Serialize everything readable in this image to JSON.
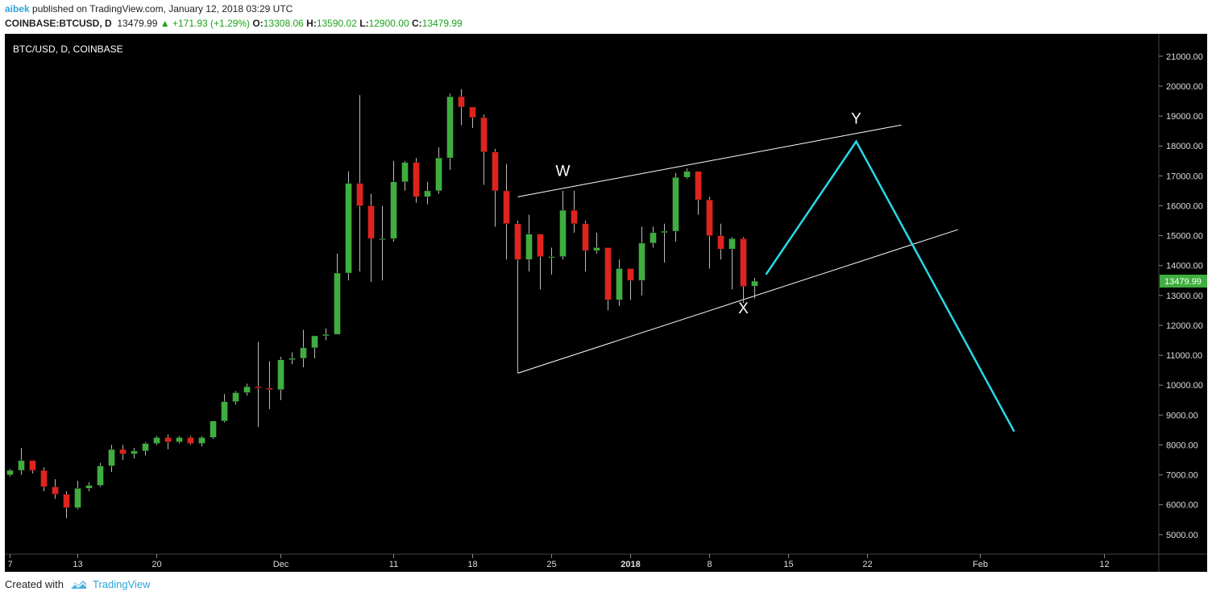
{
  "header": {
    "author": "aibek",
    "published_text": "published on TradingView.com, January 12, 2018 03:29 UTC",
    "symbol": "COINBASE:BTCUSD, D",
    "last": "13479.99",
    "change": "+171.93 (+1.29%)",
    "o_label": "O:",
    "o_value": "13308.06",
    "h_label": "H:",
    "h_value": "13590.02",
    "l_label": "L:",
    "l_value": "12900.00",
    "c_label": "C:",
    "c_value": "13479.99",
    "up_arrow": "▲"
  },
  "footer": {
    "created_with": "Created with",
    "brand": "TradingView",
    "brand_icon": "tradingview-logo-icon"
  },
  "colors": {
    "background": "#000000",
    "up": "#3fae3f",
    "down": "#e0231d",
    "projection": "#29d9e6",
    "channel": "#ffffff",
    "price_badge": "#3fae3f"
  },
  "chart_data": {
    "type": "candlestick",
    "title": "BTC/USD, D, COINBASE",
    "x_tick_labels": [
      "7",
      "13",
      "20",
      "Dec",
      "11",
      "18",
      "25",
      "2018",
      "8",
      "15",
      "22",
      "Feb",
      "12"
    ],
    "y_ticks": [
      5000,
      6000,
      7000,
      8000,
      9000,
      10000,
      11000,
      12000,
      13000,
      14000,
      15000,
      16000,
      17000,
      18000,
      19000,
      20000,
      21000
    ],
    "y_tick_labels": [
      "5000.00",
      "6000.00",
      "7000.00",
      "8000.00",
      "9000.00",
      "10000.00",
      "11000.00",
      "12000.00",
      "13000.00",
      "14000.00",
      "15000.00",
      "16000.00",
      "17000.00",
      "18000.00",
      "19000.00",
      "20000.00",
      "21000.00"
    ],
    "ylim": [
      4350,
      21750
    ],
    "grid": false,
    "current_price_label": "13479.99",
    "candles": [
      {
        "date": "2017-11-07",
        "o": 7000,
        "h": 7200,
        "l": 6950,
        "c": 7150
      },
      {
        "date": "2017-11-08",
        "o": 7150,
        "h": 7900,
        "l": 7000,
        "c": 7480
      },
      {
        "date": "2017-11-09",
        "o": 7480,
        "h": 7400,
        "l": 7050,
        "c": 7150
      },
      {
        "date": "2017-11-10",
        "o": 7150,
        "h": 7250,
        "l": 6450,
        "c": 6600
      },
      {
        "date": "2017-11-11",
        "o": 6600,
        "h": 6850,
        "l": 6200,
        "c": 6350
      },
      {
        "date": "2017-11-12",
        "o": 6350,
        "h": 6450,
        "l": 5550,
        "c": 5900
      },
      {
        "date": "2017-11-13",
        "o": 5900,
        "h": 6800,
        "l": 5850,
        "c": 6550
      },
      {
        "date": "2017-11-14",
        "o": 6550,
        "h": 6750,
        "l": 6450,
        "c": 6650
      },
      {
        "date": "2017-11-15",
        "o": 6650,
        "h": 7400,
        "l": 6600,
        "c": 7300
      },
      {
        "date": "2017-11-16",
        "o": 7300,
        "h": 8000,
        "l": 7100,
        "c": 7850
      },
      {
        "date": "2017-11-17",
        "o": 7850,
        "h": 8000,
        "l": 7500,
        "c": 7700
      },
      {
        "date": "2017-11-18",
        "o": 7700,
        "h": 7900,
        "l": 7550,
        "c": 7800
      },
      {
        "date": "2017-11-19",
        "o": 7800,
        "h": 8100,
        "l": 7650,
        "c": 8050
      },
      {
        "date": "2017-11-20",
        "o": 8050,
        "h": 8300,
        "l": 8000,
        "c": 8250
      },
      {
        "date": "2017-11-21",
        "o": 8250,
        "h": 8350,
        "l": 7850,
        "c": 8100
      },
      {
        "date": "2017-11-22",
        "o": 8100,
        "h": 8300,
        "l": 8050,
        "c": 8250
      },
      {
        "date": "2017-11-23",
        "o": 8250,
        "h": 8300,
        "l": 8000,
        "c": 8050
      },
      {
        "date": "2017-11-24",
        "o": 8050,
        "h": 8300,
        "l": 7950,
        "c": 8250
      },
      {
        "date": "2017-11-25",
        "o": 8250,
        "h": 8800,
        "l": 8200,
        "c": 8800
      },
      {
        "date": "2017-11-26",
        "o": 8800,
        "h": 9700,
        "l": 8750,
        "c": 9450
      },
      {
        "date": "2017-11-27",
        "o": 9450,
        "h": 9800,
        "l": 9350,
        "c": 9750
      },
      {
        "date": "2017-11-28",
        "o": 9750,
        "h": 10050,
        "l": 9650,
        "c": 9950
      },
      {
        "date": "2017-11-29",
        "o": 9950,
        "h": 11450,
        "l": 8600,
        "c": 9900
      },
      {
        "date": "2017-11-30",
        "o": 9900,
        "h": 10800,
        "l": 9200,
        "c": 9850
      },
      {
        "date": "2017-12-01",
        "o": 9850,
        "h": 10950,
        "l": 9500,
        "c": 10850
      },
      {
        "date": "2017-12-02",
        "o": 10850,
        "h": 11100,
        "l": 10700,
        "c": 10900
      },
      {
        "date": "2017-12-03",
        "o": 10900,
        "h": 11850,
        "l": 10600,
        "c": 11250
      },
      {
        "date": "2017-12-04",
        "o": 11250,
        "h": 11650,
        "l": 10900,
        "c": 11650
      },
      {
        "date": "2017-12-05",
        "o": 11650,
        "h": 11900,
        "l": 11500,
        "c": 11700
      },
      {
        "date": "2017-12-06",
        "o": 11700,
        "h": 14400,
        "l": 11700,
        "c": 13750
      },
      {
        "date": "2017-12-07",
        "o": 13750,
        "h": 17150,
        "l": 13500,
        "c": 16750
      },
      {
        "date": "2017-12-08",
        "o": 16750,
        "h": 19700,
        "l": 13800,
        "c": 16000
      },
      {
        "date": "2017-12-09",
        "o": 16000,
        "h": 16400,
        "l": 13450,
        "c": 14900
      },
      {
        "date": "2017-12-10",
        "o": 14900,
        "h": 16000,
        "l": 13500,
        "c": 14900
      },
      {
        "date": "2017-12-11",
        "o": 14900,
        "h": 17500,
        "l": 14800,
        "c": 16800
      },
      {
        "date": "2017-12-12",
        "o": 16800,
        "h": 17500,
        "l": 16500,
        "c": 17450
      },
      {
        "date": "2017-12-13",
        "o": 17450,
        "h": 17600,
        "l": 16100,
        "c": 16300
      },
      {
        "date": "2017-12-14",
        "o": 16300,
        "h": 16800,
        "l": 16050,
        "c": 16500
      },
      {
        "date": "2017-12-15",
        "o": 16500,
        "h": 17950,
        "l": 16400,
        "c": 17600
      },
      {
        "date": "2017-12-16",
        "o": 17600,
        "h": 19750,
        "l": 17200,
        "c": 19650
      },
      {
        "date": "2017-12-17",
        "o": 19650,
        "h": 19900,
        "l": 18700,
        "c": 19300
      },
      {
        "date": "2017-12-18",
        "o": 19300,
        "h": 19150,
        "l": 18600,
        "c": 18950
      },
      {
        "date": "2017-12-19",
        "o": 18950,
        "h": 19050,
        "l": 16700,
        "c": 17800
      },
      {
        "date": "2017-12-20",
        "o": 17800,
        "h": 17900,
        "l": 15300,
        "c": 16500
      },
      {
        "date": "2017-12-21",
        "o": 16500,
        "h": 17400,
        "l": 14200,
        "c": 15400
      },
      {
        "date": "2017-12-22",
        "o": 15400,
        "h": 15500,
        "l": 10400,
        "c": 14200
      },
      {
        "date": "2017-12-23",
        "o": 14200,
        "h": 15700,
        "l": 13800,
        "c": 15050
      },
      {
        "date": "2017-12-24",
        "o": 15050,
        "h": 15050,
        "l": 13200,
        "c": 14300
      },
      {
        "date": "2017-12-25",
        "o": 14300,
        "h": 14600,
        "l": 13700,
        "c": 14300
      },
      {
        "date": "2017-12-26",
        "o": 14300,
        "h": 16500,
        "l": 14200,
        "c": 15850
      },
      {
        "date": "2017-12-27",
        "o": 15850,
        "h": 16500,
        "l": 15100,
        "c": 15400
      },
      {
        "date": "2017-12-28",
        "o": 15400,
        "h": 15500,
        "l": 13800,
        "c": 14500
      },
      {
        "date": "2017-12-29",
        "o": 14500,
        "h": 15100,
        "l": 14400,
        "c": 14600
      },
      {
        "date": "2017-12-30",
        "o": 14600,
        "h": 14500,
        "l": 12500,
        "c": 12850
      },
      {
        "date": "2017-12-31",
        "o": 12850,
        "h": 14200,
        "l": 12650,
        "c": 13900
      },
      {
        "date": "2018-01-01",
        "o": 13900,
        "h": 13900,
        "l": 12850,
        "c": 13500
      },
      {
        "date": "2018-01-02",
        "o": 13500,
        "h": 15300,
        "l": 13000,
        "c": 14750
      },
      {
        "date": "2018-01-03",
        "o": 14750,
        "h": 15300,
        "l": 14600,
        "c": 15100
      },
      {
        "date": "2018-01-04",
        "o": 15100,
        "h": 15400,
        "l": 14100,
        "c": 15150
      },
      {
        "date": "2018-01-05",
        "o": 15150,
        "h": 17100,
        "l": 14800,
        "c": 16950
      },
      {
        "date": "2018-01-06",
        "o": 16950,
        "h": 17250,
        "l": 16900,
        "c": 17150
      },
      {
        "date": "2018-01-07",
        "o": 17150,
        "h": 17100,
        "l": 15700,
        "c": 16200
      },
      {
        "date": "2018-01-08",
        "o": 16200,
        "h": 16300,
        "l": 13900,
        "c": 15000
      },
      {
        "date": "2018-01-09",
        "o": 15000,
        "h": 15400,
        "l": 14200,
        "c": 14550
      },
      {
        "date": "2018-01-10",
        "o": 14550,
        "h": 14950,
        "l": 13200,
        "c": 14900
      },
      {
        "date": "2018-01-11",
        "o": 14900,
        "h": 14950,
        "l": 12750,
        "c": 13300
      },
      {
        "date": "2018-01-12",
        "o": 13308.06,
        "h": 13590.02,
        "l": 12900.0,
        "c": 13479.99
      }
    ],
    "annotations": [
      {
        "text": "W",
        "date": "2017-12-26",
        "price": 17000
      },
      {
        "text": "X",
        "date": "2018-01-11",
        "price": 12400
      },
      {
        "text": "Y",
        "date": "2018-01-21",
        "price": 18750
      }
    ],
    "channel_lines": [
      {
        "from": {
          "date": "2017-12-22",
          "price": 16300
        },
        "to": {
          "date": "2018-01-25",
          "price": 18700
        }
      },
      {
        "from": {
          "date": "2017-12-22",
          "price": 10400
        },
        "to": {
          "date": "2018-01-30",
          "price": 15200
        }
      },
      {
        "from": {
          "date": "2017-12-22",
          "price": 15500
        },
        "to": {
          "date": "2017-12-22",
          "price": 10400
        }
      }
    ],
    "projection": [
      {
        "date": "2018-01-13",
        "price": 13700
      },
      {
        "date": "2018-01-21",
        "price": 18150
      },
      {
        "date": "2018-02-04",
        "price": 8450
      }
    ]
  }
}
